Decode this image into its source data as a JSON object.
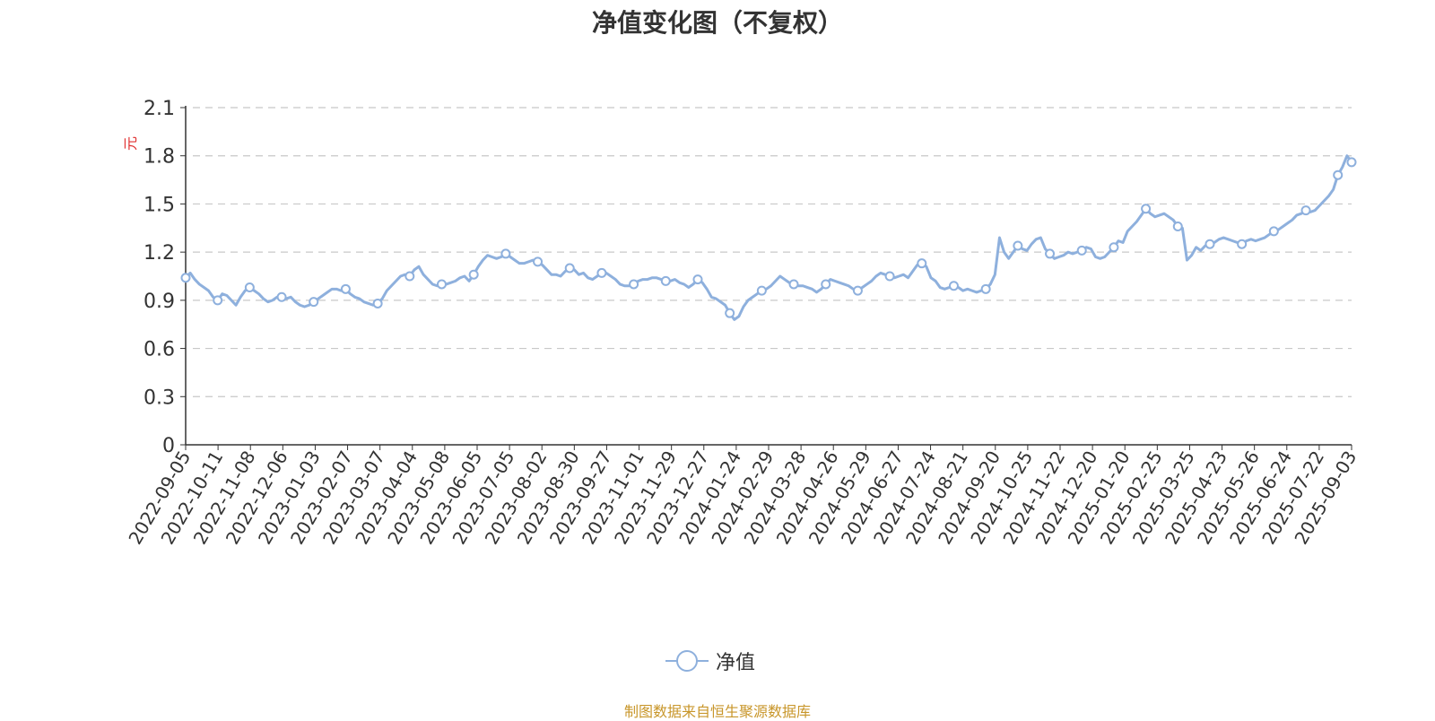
{
  "chart_data": {
    "type": "line",
    "title": "净值变化图（不复权）",
    "ylabel": "元",
    "ylim": [
      0,
      2.1
    ],
    "yticks": [
      0,
      0.3,
      0.6,
      0.9,
      1.2,
      1.5,
      1.8,
      2.1
    ],
    "ytick_labels": [
      "0",
      "0.3",
      "0.6",
      "0.9",
      "1.2",
      "1.5",
      "1.8",
      "2.1"
    ],
    "grid": true,
    "legend_position": "bottom-center",
    "x_tick_labels": [
      "2022-09-05",
      "2022-10-11",
      "2022-11-08",
      "2022-12-06",
      "2023-01-03",
      "2023-02-07",
      "2023-03-07",
      "2023-04-04",
      "2023-05-08",
      "2023-06-05",
      "2023-07-05",
      "2023-08-02",
      "2023-08-30",
      "2023-09-27",
      "2023-11-01",
      "2023-11-29",
      "2023-12-27",
      "2024-01-24",
      "2024-02-29",
      "2024-03-28",
      "2024-04-26",
      "2024-05-29",
      "2024-06-27",
      "2024-07-24",
      "2024-08-21",
      "2024-09-20",
      "2024-10-25",
      "2024-11-22",
      "2024-12-20",
      "2025-01-20",
      "2025-02-25",
      "2025-03-25",
      "2025-04-23",
      "2025-05-26",
      "2025-06-24",
      "2025-07-22",
      "2025-09-03"
    ],
    "series": [
      {
        "name": "净值",
        "color": "#8eb0dd",
        "values": [
          1.04,
          1.07,
          1.03,
          1.0,
          0.98,
          0.96,
          0.92,
          0.9,
          0.94,
          0.93,
          0.9,
          0.87,
          0.92,
          0.96,
          0.98,
          0.96,
          0.94,
          0.91,
          0.89,
          0.9,
          0.92,
          0.92,
          0.91,
          0.92,
          0.89,
          0.87,
          0.86,
          0.87,
          0.89,
          0.91,
          0.93,
          0.95,
          0.97,
          0.97,
          0.96,
          0.97,
          0.94,
          0.92,
          0.91,
          0.89,
          0.88,
          0.87,
          0.88,
          0.91,
          0.96,
          0.99,
          1.02,
          1.05,
          1.06,
          1.05,
          1.09,
          1.11,
          1.06,
          1.03,
          1.0,
          0.99,
          1.0,
          1.0,
          1.01,
          1.02,
          1.04,
          1.05,
          1.02,
          1.06,
          1.11,
          1.15,
          1.18,
          1.17,
          1.16,
          1.17,
          1.19,
          1.17,
          1.15,
          1.13,
          1.13,
          1.14,
          1.15,
          1.14,
          1.12,
          1.09,
          1.06,
          1.06,
          1.05,
          1.08,
          1.1,
          1.09,
          1.06,
          1.07,
          1.04,
          1.03,
          1.05,
          1.07,
          1.07,
          1.05,
          1.03,
          1.0,
          0.99,
          0.99,
          1.0,
          1.02,
          1.03,
          1.03,
          1.04,
          1.04,
          1.03,
          1.02,
          1.02,
          1.03,
          1.01,
          1.0,
          0.98,
          1.0,
          1.03,
          1.01,
          0.97,
          0.92,
          0.91,
          0.89,
          0.87,
          0.82,
          0.78,
          0.8,
          0.86,
          0.9,
          0.92,
          0.94,
          0.96,
          0.97,
          0.99,
          1.02,
          1.05,
          1.03,
          1.01,
          1.0,
          0.99,
          0.99,
          0.98,
          0.97,
          0.95,
          0.97,
          1.0,
          1.03,
          1.02,
          1.01,
          1.0,
          0.99,
          0.97,
          0.96,
          0.98,
          1.0,
          1.02,
          1.05,
          1.07,
          1.06,
          1.05,
          1.04,
          1.05,
          1.06,
          1.04,
          1.08,
          1.12,
          1.13,
          1.11,
          1.04,
          1.02,
          0.98,
          0.97,
          0.98,
          0.99,
          0.98,
          0.96,
          0.97,
          0.96,
          0.95,
          0.96,
          0.97,
          1.0,
          1.06,
          1.29,
          1.2,
          1.16,
          1.2,
          1.24,
          1.22,
          1.21,
          1.25,
          1.28,
          1.29,
          1.22,
          1.19,
          1.16,
          1.17,
          1.18,
          1.2,
          1.19,
          1.2,
          1.21,
          1.23,
          1.22,
          1.17,
          1.16,
          1.17,
          1.2,
          1.23,
          1.27,
          1.26,
          1.33,
          1.36,
          1.39,
          1.43,
          1.47,
          1.44,
          1.42,
          1.43,
          1.44,
          1.42,
          1.4,
          1.36,
          1.35,
          1.15,
          1.18,
          1.23,
          1.21,
          1.24,
          1.25,
          1.26,
          1.28,
          1.29,
          1.28,
          1.27,
          1.26,
          1.25,
          1.27,
          1.28,
          1.27,
          1.28,
          1.29,
          1.31,
          1.33,
          1.34,
          1.36,
          1.38,
          1.4,
          1.43,
          1.44,
          1.46,
          1.45,
          1.46,
          1.49,
          1.52,
          1.55,
          1.59,
          1.68,
          1.73,
          1.8,
          1.76
        ]
      }
    ]
  },
  "legend": {
    "label": "净值"
  },
  "source_note": "制图数据来自恒生聚源数据库"
}
